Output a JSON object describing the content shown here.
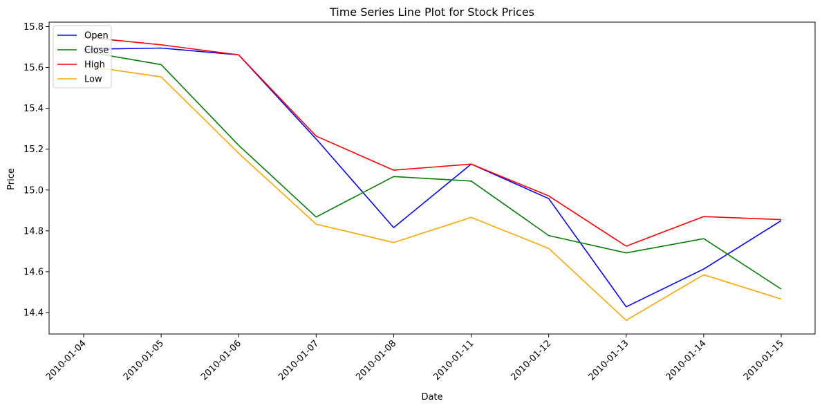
{
  "chart_data": {
    "type": "line",
    "title": "Time Series Line Plot for Stock Prices",
    "xlabel": "Date",
    "ylabel": "Price",
    "categories": [
      "2010-01-04",
      "2010-01-05",
      "2010-01-06",
      "2010-01-07",
      "2010-01-08",
      "2010-01-11",
      "2010-01-12",
      "2010-01-13",
      "2010-01-14",
      "2010-01-15"
    ],
    "y_ticks": [
      "14.4",
      "14.6",
      "14.8",
      "15.0",
      "15.2",
      "15.4",
      "15.6",
      "15.8"
    ],
    "ylim": [
      14.295,
      15.822
    ],
    "legend_position": "upper-left",
    "grid": false,
    "series": [
      {
        "name": "Open",
        "color": "#0000ff",
        "values": [
          15.689,
          15.695,
          15.662,
          15.25,
          14.816,
          15.127,
          14.958,
          14.428,
          14.613,
          14.85
        ]
      },
      {
        "name": "Close",
        "color": "#008000",
        "values": [
          15.679,
          15.614,
          15.219,
          14.868,
          15.066,
          15.044,
          14.777,
          14.692,
          14.762,
          14.515
        ]
      },
      {
        "name": "High",
        "color": "#ff0000",
        "values": [
          15.749,
          15.711,
          15.662,
          15.264,
          15.097,
          15.127,
          14.971,
          14.725,
          14.87,
          14.855
        ]
      },
      {
        "name": "Low",
        "color": "#ffa500",
        "values": [
          15.609,
          15.554,
          15.18,
          14.833,
          14.743,
          14.866,
          14.714,
          14.362,
          14.585,
          14.466
        ]
      }
    ]
  }
}
